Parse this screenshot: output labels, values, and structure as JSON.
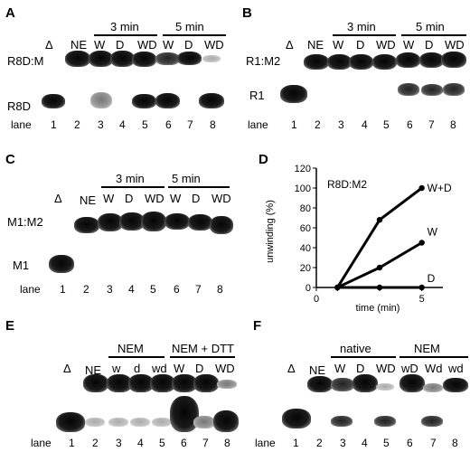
{
  "panels": {
    "A": {
      "label": "A",
      "header": {
        "c1": "Δ",
        "c2": "NE",
        "g1": "3 min",
        "g2": "5 min",
        "w": "W",
        "d": "D",
        "wd": "WD"
      },
      "bands": {
        "top": "R8D:M",
        "bottom": "R8D"
      },
      "lane_label": "lane",
      "lanes": [
        "1",
        "2",
        "3",
        "4",
        "5",
        "6",
        "7",
        "8"
      ]
    },
    "B": {
      "label": "B",
      "header": {
        "c1": "Δ",
        "c2": "NE",
        "g1": "3 min",
        "g2": "5 min",
        "w": "W",
        "d": "D",
        "wd": "WD"
      },
      "bands": {
        "top": "R1:M2",
        "bottom": "R1"
      },
      "lane_label": "lane",
      "lanes": [
        "1",
        "2",
        "3",
        "4",
        "5",
        "6",
        "7",
        "8"
      ]
    },
    "C": {
      "label": "C",
      "header": {
        "c1": "Δ",
        "c2": "NE",
        "g1": "3 min",
        "g2": "5 min",
        "w": "W",
        "d": "D",
        "wd": "WD"
      },
      "bands": {
        "top": "M1:M2",
        "bottom": "M1"
      },
      "lane_label": "lane",
      "lanes": [
        "1",
        "2",
        "3",
        "4",
        "5",
        "6",
        "7",
        "8"
      ]
    },
    "D": {
      "label": "D",
      "inset_title": "R8D:M2",
      "ylabel": "unwinding (%)",
      "xlabel": "time (min)"
    },
    "E": {
      "label": "E",
      "header": {
        "c1": "Δ",
        "c2": "NE",
        "g1": "NEM",
        "g2": "NEM + DTT",
        "l3": "w",
        "l4": "d",
        "l5": "wd",
        "l6": "W",
        "l7": "D",
        "l8": "WD"
      },
      "lane_label": "lane",
      "lanes": [
        "1",
        "2",
        "3",
        "4",
        "5",
        "6",
        "7",
        "8"
      ]
    },
    "F": {
      "label": "F",
      "header": {
        "c1": "Δ",
        "c2": "NE",
        "g1": "native",
        "g2": "NEM",
        "l3": "W",
        "l4": "D",
        "l5": "WD",
        "l6": "wD",
        "l7": "Wd",
        "l8": "wd"
      },
      "lane_label": "lane",
      "lanes": [
        "1",
        "2",
        "3",
        "4",
        "5",
        "6",
        "7",
        "8"
      ]
    }
  },
  "chart_data": {
    "type": "line",
    "title": "R8D:M2",
    "xlabel": "time (min)",
    "ylabel": "unwinding (%)",
    "xlim": [
      0,
      6
    ],
    "ylim": [
      0,
      120
    ],
    "xticks": [
      0,
      1,
      3,
      5
    ],
    "yticks": [
      0,
      20,
      40,
      60,
      80,
      100,
      120
    ],
    "grid": false,
    "legend": "none",
    "series": [
      {
        "name": "W+D",
        "x": [
          1,
          3,
          5
        ],
        "y": [
          0,
          68,
          100
        ]
      },
      {
        "name": "W",
        "x": [
          1,
          3,
          5
        ],
        "y": [
          0,
          20,
          45
        ]
      },
      {
        "name": "D",
        "x": [
          1,
          3,
          5
        ],
        "y": [
          0,
          0,
          0
        ]
      }
    ]
  }
}
